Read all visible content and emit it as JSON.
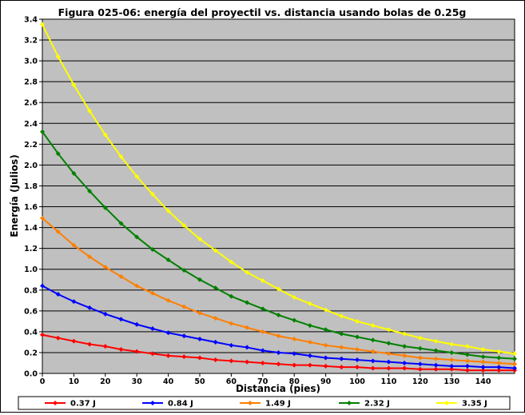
{
  "chart_data": {
    "type": "line",
    "title": "Figura 025-06: energía del proyectil vs. distancia usando bolas de 0.25g",
    "xlabel": "Distancia (pies)",
    "ylabel": "Energía (Julios)",
    "xlim": [
      0,
      150
    ],
    "ylim": [
      0,
      3.4
    ],
    "xticks": [
      0,
      10,
      20,
      30,
      40,
      50,
      60,
      70,
      80,
      90,
      100,
      110,
      120,
      130,
      140
    ],
    "yticks": [
      "0.0",
      "0.2",
      "0.4",
      "0.6",
      "0.8",
      "1.0",
      "1.2",
      "1.4",
      "1.6",
      "1.8",
      "2.0",
      "2.2",
      "2.4",
      "2.6",
      "2.8",
      "3.0",
      "3.2",
      "3.4"
    ],
    "grid": "horizontal",
    "legend_position": "bottom",
    "x": [
      0,
      5,
      10,
      15,
      20,
      25,
      30,
      35,
      40,
      45,
      50,
      55,
      60,
      65,
      70,
      75,
      80,
      85,
      90,
      95,
      100,
      105,
      110,
      115,
      120,
      125,
      130,
      135,
      140,
      145,
      150
    ],
    "series": [
      {
        "name": "0.37 J",
        "color": "#ff0000",
        "values": [
          0.37,
          0.34,
          0.31,
          0.28,
          0.26,
          0.23,
          0.21,
          0.19,
          0.17,
          0.16,
          0.15,
          0.13,
          0.12,
          0.11,
          0.1,
          0.09,
          0.08,
          0.08,
          0.07,
          0.06,
          0.06,
          0.05,
          0.05,
          0.05,
          0.04,
          0.04,
          0.04,
          0.03,
          0.03,
          0.03,
          0.03
        ]
      },
      {
        "name": "0.84 J",
        "color": "#0000ff",
        "values": [
          0.84,
          0.76,
          0.69,
          0.63,
          0.57,
          0.52,
          0.47,
          0.43,
          0.39,
          0.36,
          0.33,
          0.3,
          0.27,
          0.25,
          0.22,
          0.2,
          0.19,
          0.17,
          0.15,
          0.14,
          0.13,
          0.12,
          0.11,
          0.1,
          0.09,
          0.08,
          0.07,
          0.07,
          0.06,
          0.06,
          0.05
        ]
      },
      {
        "name": "1.49 J",
        "color": "#ff7f00",
        "values": [
          1.49,
          1.36,
          1.23,
          1.12,
          1.02,
          0.93,
          0.84,
          0.77,
          0.7,
          0.64,
          0.58,
          0.53,
          0.48,
          0.44,
          0.4,
          0.36,
          0.33,
          0.3,
          0.27,
          0.25,
          0.23,
          0.21,
          0.19,
          0.17,
          0.15,
          0.14,
          0.13,
          0.12,
          0.11,
          0.1,
          0.09
        ]
      },
      {
        "name": "2.32 J",
        "color": "#008000",
        "values": [
          2.32,
          2.11,
          1.92,
          1.75,
          1.59,
          1.44,
          1.31,
          1.19,
          1.09,
          0.99,
          0.9,
          0.82,
          0.74,
          0.68,
          0.62,
          0.56,
          0.51,
          0.46,
          0.42,
          0.38,
          0.35,
          0.32,
          0.29,
          0.26,
          0.24,
          0.22,
          0.2,
          0.18,
          0.16,
          0.15,
          0.14
        ]
      },
      {
        "name": "3.35 J",
        "color": "#ffff00",
        "values": [
          3.35,
          3.04,
          2.77,
          2.52,
          2.29,
          2.08,
          1.89,
          1.72,
          1.56,
          1.42,
          1.29,
          1.18,
          1.07,
          0.97,
          0.89,
          0.81,
          0.73,
          0.67,
          0.61,
          0.55,
          0.5,
          0.46,
          0.42,
          0.38,
          0.34,
          0.31,
          0.28,
          0.26,
          0.23,
          0.21,
          0.19
        ]
      }
    ]
  }
}
